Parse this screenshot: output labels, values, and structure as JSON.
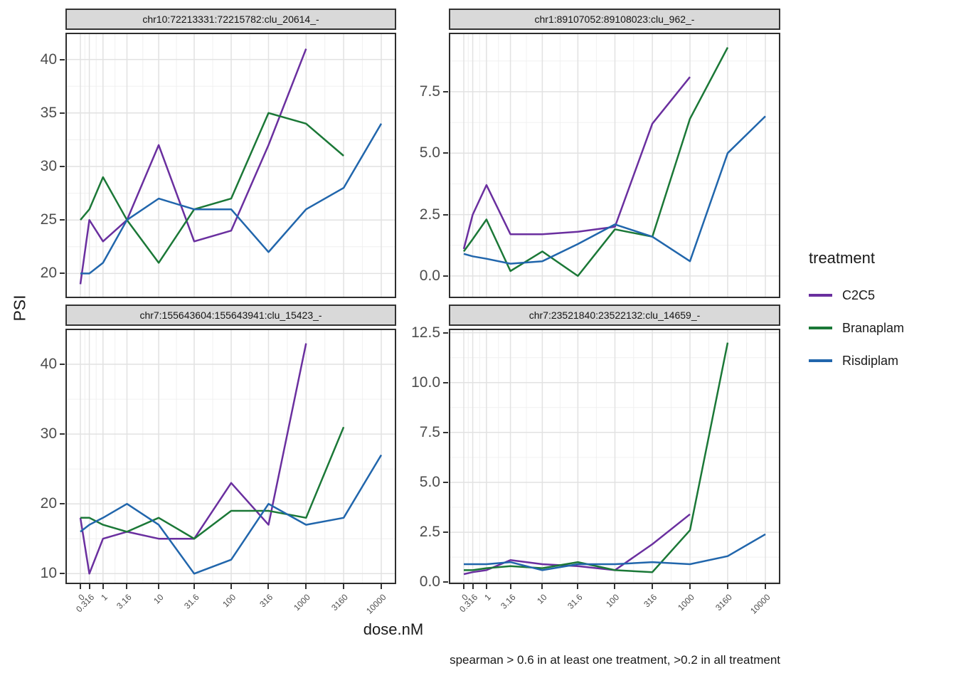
{
  "chart_data": {
    "type": "line",
    "x_label": "dose.nM",
    "y_label": "PSI",
    "caption": "spearman > 0.6 in at least one treatment, >0.2 in all treatment",
    "x_scale": "log1p",
    "doses": [
      0,
      0.316,
      1,
      3.16,
      10,
      31.6,
      100,
      316,
      1000,
      3160,
      10000
    ],
    "x_tick_labels": [
      "0",
      "0.316",
      "1",
      "3.16",
      "10",
      "31.6",
      "100",
      "316",
      "1000",
      "3160",
      "10000"
    ],
    "grid": "on",
    "legend": {
      "title": "treatment",
      "position": "right",
      "entries": [
        {
          "name": "C2C5",
          "color": "#6a2f9f"
        },
        {
          "name": "Branaplam",
          "color": "#1b7837"
        },
        {
          "name": "Risdiplam",
          "color": "#2166ac"
        }
      ]
    },
    "panels": [
      {
        "title": "chr10:72213331:72215782:clu_20614_-",
        "ylim": [
          17.7,
          42.5
        ],
        "yticks": [
          20,
          25,
          30,
          35,
          40
        ],
        "ytick_labels": [
          "20",
          "25",
          "30",
          "35",
          "40"
        ],
        "series": [
          {
            "name": "C2C5",
            "values": [
              19,
              25,
              23,
              25,
              32,
              23,
              24,
              32,
              41
            ]
          },
          {
            "name": "Branaplam",
            "values": [
              25,
              26,
              29,
              25,
              21,
              26,
              27,
              35,
              34,
              31
            ]
          },
          {
            "name": "Risdiplam",
            "values": [
              20,
              20,
              21,
              25,
              27,
              26,
              26,
              22,
              26,
              28,
              34
            ]
          }
        ]
      },
      {
        "title": "chr1:89107052:89108023:clu_962_-",
        "ylim": [
          -0.9,
          9.9
        ],
        "yticks": [
          0,
          2.5,
          5,
          7.5
        ],
        "ytick_labels": [
          "0.0",
          "2.5",
          "5.0",
          "7.5"
        ],
        "series": [
          {
            "name": "C2C5",
            "values": [
              1.1,
              2.5,
              3.7,
              1.7,
              1.7,
              1.8,
              2.0,
              6.2,
              8.1
            ]
          },
          {
            "name": "Branaplam",
            "values": [
              1.0,
              1.5,
              2.3,
              0.2,
              1.0,
              0.0,
              1.9,
              1.6,
              6.4,
              9.3
            ]
          },
          {
            "name": "Risdiplam",
            "values": [
              0.9,
              0.8,
              0.7,
              0.5,
              0.6,
              1.3,
              2.1,
              1.6,
              0.6,
              5.0,
              6.5
            ]
          }
        ]
      },
      {
        "title": "chr7:155643604:155643941:clu_15423_-",
        "ylim": [
          8.5,
          45.1
        ],
        "yticks": [
          10,
          20,
          30,
          40
        ],
        "ytick_labels": [
          "10",
          "20",
          "30",
          "40"
        ],
        "series": [
          {
            "name": "C2C5",
            "values": [
              18,
              10,
              15,
              16,
              15,
              15,
              23,
              17,
              43
            ]
          },
          {
            "name": "Branaplam",
            "values": [
              18,
              18,
              17,
              16,
              18,
              15,
              19,
              19,
              18,
              31
            ]
          },
          {
            "name": "Risdiplam",
            "values": [
              16,
              17,
              18,
              20,
              17,
              10,
              12,
              20,
              17,
              18,
              27
            ]
          }
        ]
      },
      {
        "title": "chr7:23521840:23522132:clu_14659_-",
        "ylim": [
          -0.1,
          12.7
        ],
        "yticks": [
          0,
          2.5,
          5,
          7.5,
          10,
          12.5
        ],
        "ytick_labels": [
          "0.0",
          "2.5",
          "5.0",
          "7.5",
          "10.0",
          "12.5"
        ],
        "series": [
          {
            "name": "C2C5",
            "values": [
              0.4,
              0.5,
              0.6,
              1.1,
              0.9,
              0.8,
              0.6,
              1.9,
              3.4
            ]
          },
          {
            "name": "Branaplam",
            "values": [
              0.6,
              0.6,
              0.7,
              0.8,
              0.7,
              1.0,
              0.6,
              0.5,
              2.6,
              12.0
            ]
          },
          {
            "name": "Risdiplam",
            "values": [
              0.9,
              0.9,
              0.9,
              1.0,
              0.6,
              0.9,
              0.9,
              1.0,
              0.9,
              1.3,
              2.4
            ]
          }
        ]
      }
    ]
  },
  "theme": {
    "background": "#ffffff",
    "strip_bg": "#d9d9d9",
    "panel_border": "#2e2e2e",
    "grid_major": "#e2e2e2",
    "grid_minor": "#f0f0f0",
    "axis_text": "#4d4d4d",
    "tick_color": "#333333",
    "line_width": 2.5
  }
}
